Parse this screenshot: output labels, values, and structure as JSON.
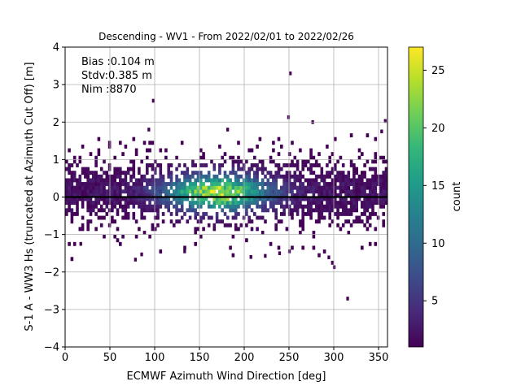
{
  "chart_data": {
    "type": "heatmap",
    "title": "Descending - WV1 - From 2022/02/01 to 2022/02/26",
    "xlabel": "ECMWF Azimuth Wind Direction [deg]",
    "ylabel": "S-1 A - WW3 Hs (truncated at Azimuth Cut Off) [m]",
    "xlim": [
      0,
      360
    ],
    "ylim": [
      -4,
      4
    ],
    "xticks": [
      "0",
      "50",
      "100",
      "150",
      "200",
      "250",
      "300",
      "350"
    ],
    "yticks": [
      "−4",
      "−3",
      "−2",
      "−1",
      "0",
      "1",
      "2",
      "3",
      "4"
    ],
    "grid": true,
    "stats": [
      "Bias :0.104 m",
      "Stdv:0.385 m",
      "Nim :8870"
    ],
    "zero_line": 0,
    "colorbar": {
      "label": "count",
      "range": [
        1,
        27
      ],
      "ticks": [
        "5",
        "10",
        "15",
        "20",
        "25"
      ],
      "colormap": "viridis"
    },
    "density": {
      "bin_width_x_deg": 3,
      "bin_height_y_m": 0.1,
      "core_center_x_deg": 170,
      "core_center_y_m": 0.12,
      "core_peak_count": 27,
      "approx_main_y_range_m": [
        -1.0,
        1.6
      ]
    },
    "outliers": [
      {
        "x": 97,
        "y": 2.52
      },
      {
        "x": 92,
        "y": 1.75
      },
      {
        "x": 248,
        "y": 2.08
      },
      {
        "x": 250,
        "y": 3.25
      },
      {
        "x": 275,
        "y": 1.95
      },
      {
        "x": 356,
        "y": 1.98
      },
      {
        "x": 352,
        "y": 1.7
      },
      {
        "x": 314,
        "y": -2.76
      },
      {
        "x": 299,
        "y": -1.92
      },
      {
        "x": 77,
        "y": -1.72
      },
      {
        "x": 84,
        "y": -1.58
      },
      {
        "x": 206,
        "y": -1.65
      },
      {
        "x": 222,
        "y": -1.62
      },
      {
        "x": 293,
        "y": -1.66
      },
      {
        "x": 249,
        "y": -1.5
      },
      {
        "x": 132,
        "y": -1.5
      },
      {
        "x": 180,
        "y": 1.75
      },
      {
        "x": 238,
        "y": -1.55
      },
      {
        "x": 16,
        "y": -1.3
      }
    ],
    "colors": {
      "grid": "#b0b0b0",
      "zero_line": "#000000",
      "viridis_stops": [
        "#440154",
        "#482878",
        "#3e4989",
        "#31688e",
        "#26828e",
        "#1f9e89",
        "#35b779",
        "#6ece58",
        "#b5de2b",
        "#fde725"
      ]
    }
  }
}
